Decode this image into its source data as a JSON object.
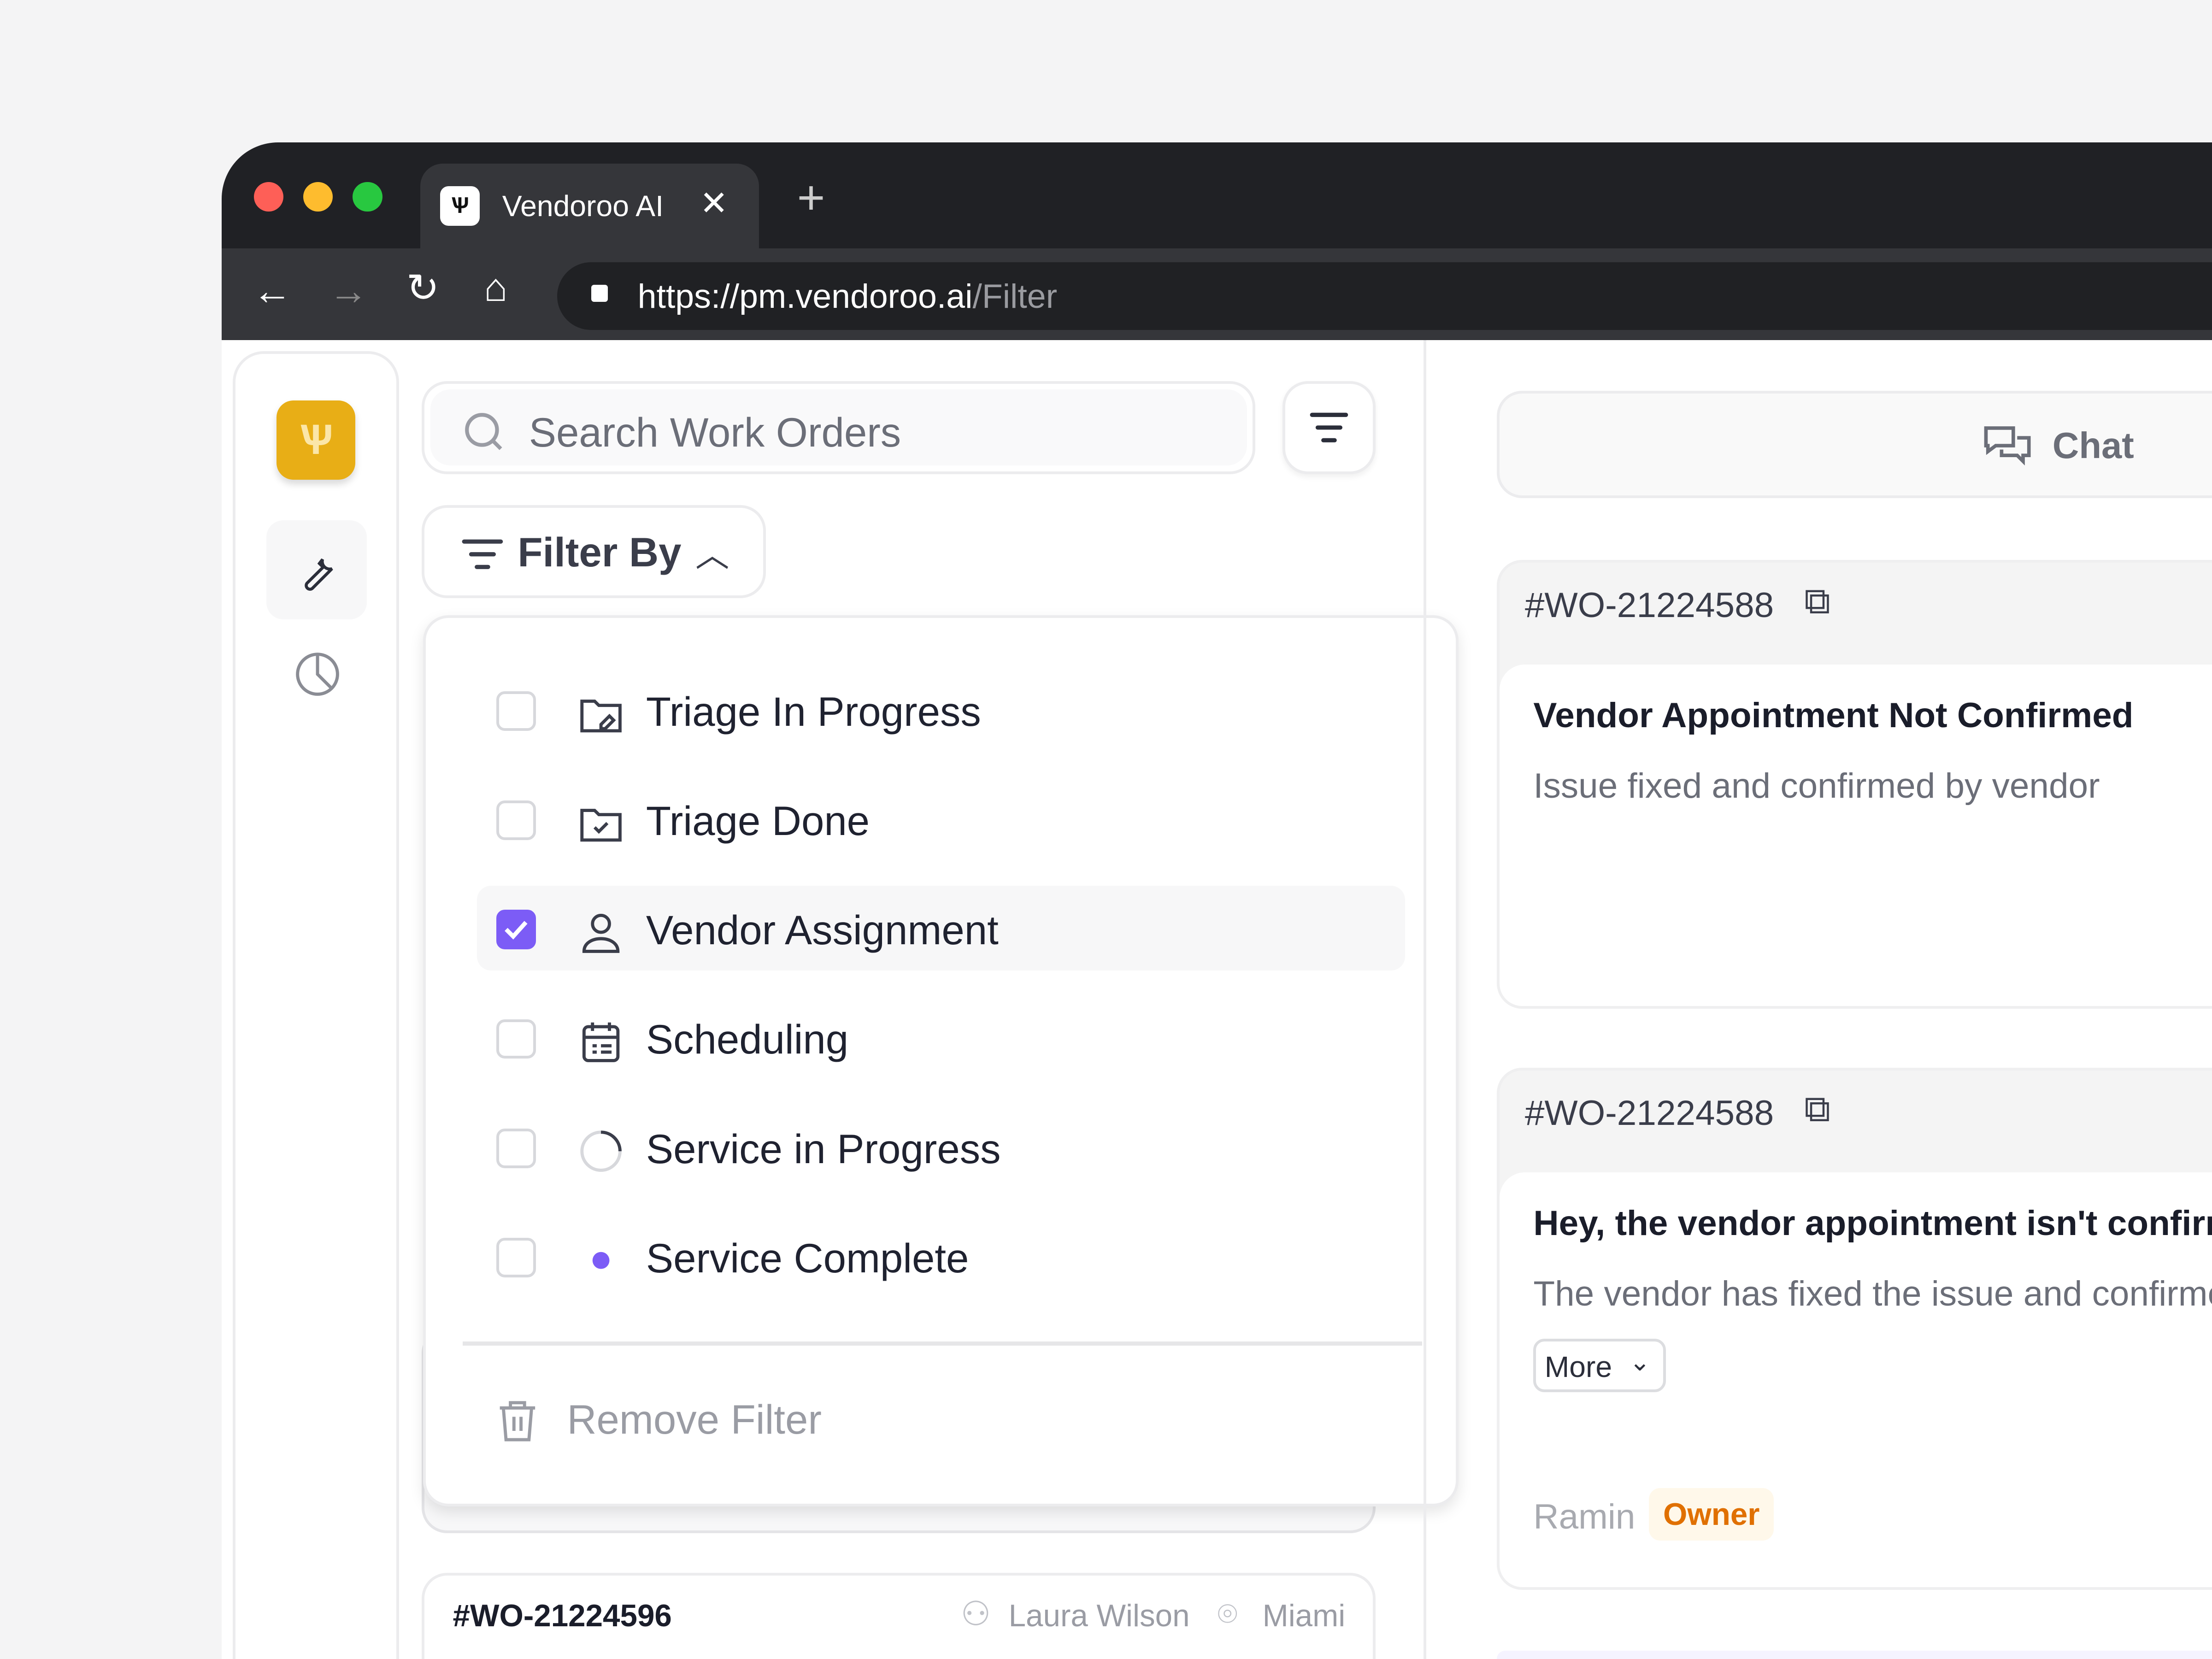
{
  "browser": {
    "tab_title": "Vendoroo AI",
    "url_main": "https://pm.vendoroo.ai",
    "url_path": "/Filter",
    "traffic_colors": [
      "#fe5f57",
      "#febc2e",
      "#28c840"
    ]
  },
  "search": {
    "placeholder": "Search Work Orders"
  },
  "filter": {
    "button_label": "Filter By",
    "options": [
      {
        "label": "Triage In Progress",
        "icon": "folder-edit-icon",
        "checked": false
      },
      {
        "label": "Triage Done",
        "icon": "folder-check-icon",
        "checked": false
      },
      {
        "label": "Vendor Assignment",
        "icon": "user-icon",
        "checked": true
      },
      {
        "label": "Scheduling",
        "icon": "calendar-list-icon",
        "checked": false
      },
      {
        "label": "Service in Progress",
        "icon": "spinner-icon",
        "checked": false
      },
      {
        "label": "Service Complete",
        "icon": "dot-icon",
        "checked": false
      }
    ],
    "remove_label": "Remove Filter",
    "accent": "#7c5cf6"
  },
  "list_card": {
    "id": "#WO-21224596",
    "person": "Laura Wilson",
    "location": "Miami"
  },
  "chat": {
    "label": "Chat"
  },
  "messages": [
    {
      "id": "#WO-21224588",
      "title": "Vendor Appointment Not Confirmed",
      "body": "Issue fixed and confirmed by vendor"
    },
    {
      "id": "#WO-21224588",
      "title": "Hey, the vendor appointment isn't confirmed",
      "body": "The vendor has fixed the issue and confirmed",
      "more_label": "More",
      "author": "Ramin",
      "role": "Owner"
    }
  ],
  "brand_color": "#e8ae16"
}
